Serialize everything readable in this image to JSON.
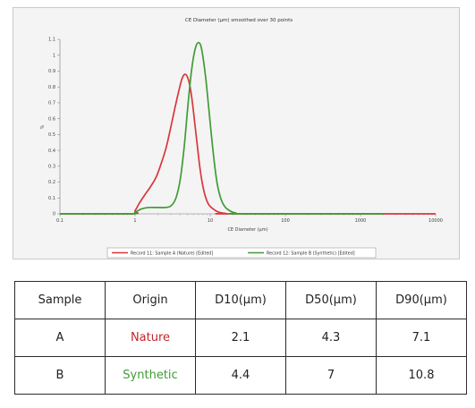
{
  "chart_data": {
    "type": "line",
    "title": "CE Diameter (µm) smoothed over 30 points",
    "xlabel": "CE Diameter (µm)",
    "ylabel": "%",
    "x_scale": "log",
    "xlim": [
      0.1,
      10000
    ],
    "ylim": [
      0,
      1.1
    ],
    "x_ticks": [
      "0.1",
      "1",
      "10",
      "100",
      "1000",
      "10000"
    ],
    "y_ticks": [
      "0",
      "0.1",
      "0.2",
      "0.3",
      "0.4",
      "0.5",
      "0.6",
      "0.7",
      "0.8",
      "0.9",
      "1",
      "1.1"
    ],
    "grid": false,
    "legend_position": "bottom",
    "series": [
      {
        "name": "Record 11: Sample A (Nature) [Edited]",
        "color": "#d9363e",
        "x": [
          0.1,
          0.9,
          1.0,
          1.15,
          1.35,
          1.6,
          1.9,
          2.2,
          2.6,
          3.0,
          3.4,
          3.8,
          4.2,
          4.6,
          5.0,
          5.4,
          5.8,
          6.2,
          6.7,
          7.2,
          7.8,
          8.5,
          9.5,
          11,
          13,
          16,
          20,
          10000
        ],
        "y": [
          0,
          0,
          0.02,
          0.07,
          0.12,
          0.17,
          0.23,
          0.31,
          0.42,
          0.55,
          0.67,
          0.77,
          0.85,
          0.88,
          0.86,
          0.8,
          0.7,
          0.58,
          0.44,
          0.31,
          0.2,
          0.12,
          0.06,
          0.03,
          0.01,
          0.003,
          0,
          0
        ]
      },
      {
        "name": "Record 12: Sample B (Synthetic) [Edited]",
        "color": "#3f9c35",
        "x": [
          0.1,
          0.85,
          1.0,
          1.2,
          1.5,
          2.0,
          2.5,
          3.0,
          3.5,
          4.0,
          4.5,
          5.0,
          5.5,
          6.0,
          6.5,
          7.0,
          7.5,
          8.0,
          8.7,
          9.5,
          10.5,
          11.5,
          12.5,
          14,
          16,
          19,
          22,
          26,
          2000
        ],
        "y": [
          0,
          0,
          0.01,
          0.03,
          0.04,
          0.04,
          0.04,
          0.05,
          0.1,
          0.22,
          0.42,
          0.66,
          0.86,
          0.99,
          1.06,
          1.08,
          1.06,
          0.99,
          0.86,
          0.68,
          0.47,
          0.3,
          0.18,
          0.09,
          0.04,
          0.015,
          0.005,
          0,
          0
        ]
      }
    ]
  },
  "table": {
    "headers": [
      "Sample",
      "Origin",
      "D10(μm)",
      "D50(μm)",
      "D90(μm)"
    ],
    "rows": [
      {
        "sample": "A",
        "origin": "Nature",
        "d10": "2.1",
        "d50": "4.3",
        "d90": "7.1"
      },
      {
        "sample": "B",
        "origin": "Synthetic",
        "d10": "4.4",
        "d50": "7",
        "d90": "10.8"
      }
    ]
  },
  "colors": {
    "nature": "#c0282d",
    "synthetic": "#3f9c35"
  }
}
